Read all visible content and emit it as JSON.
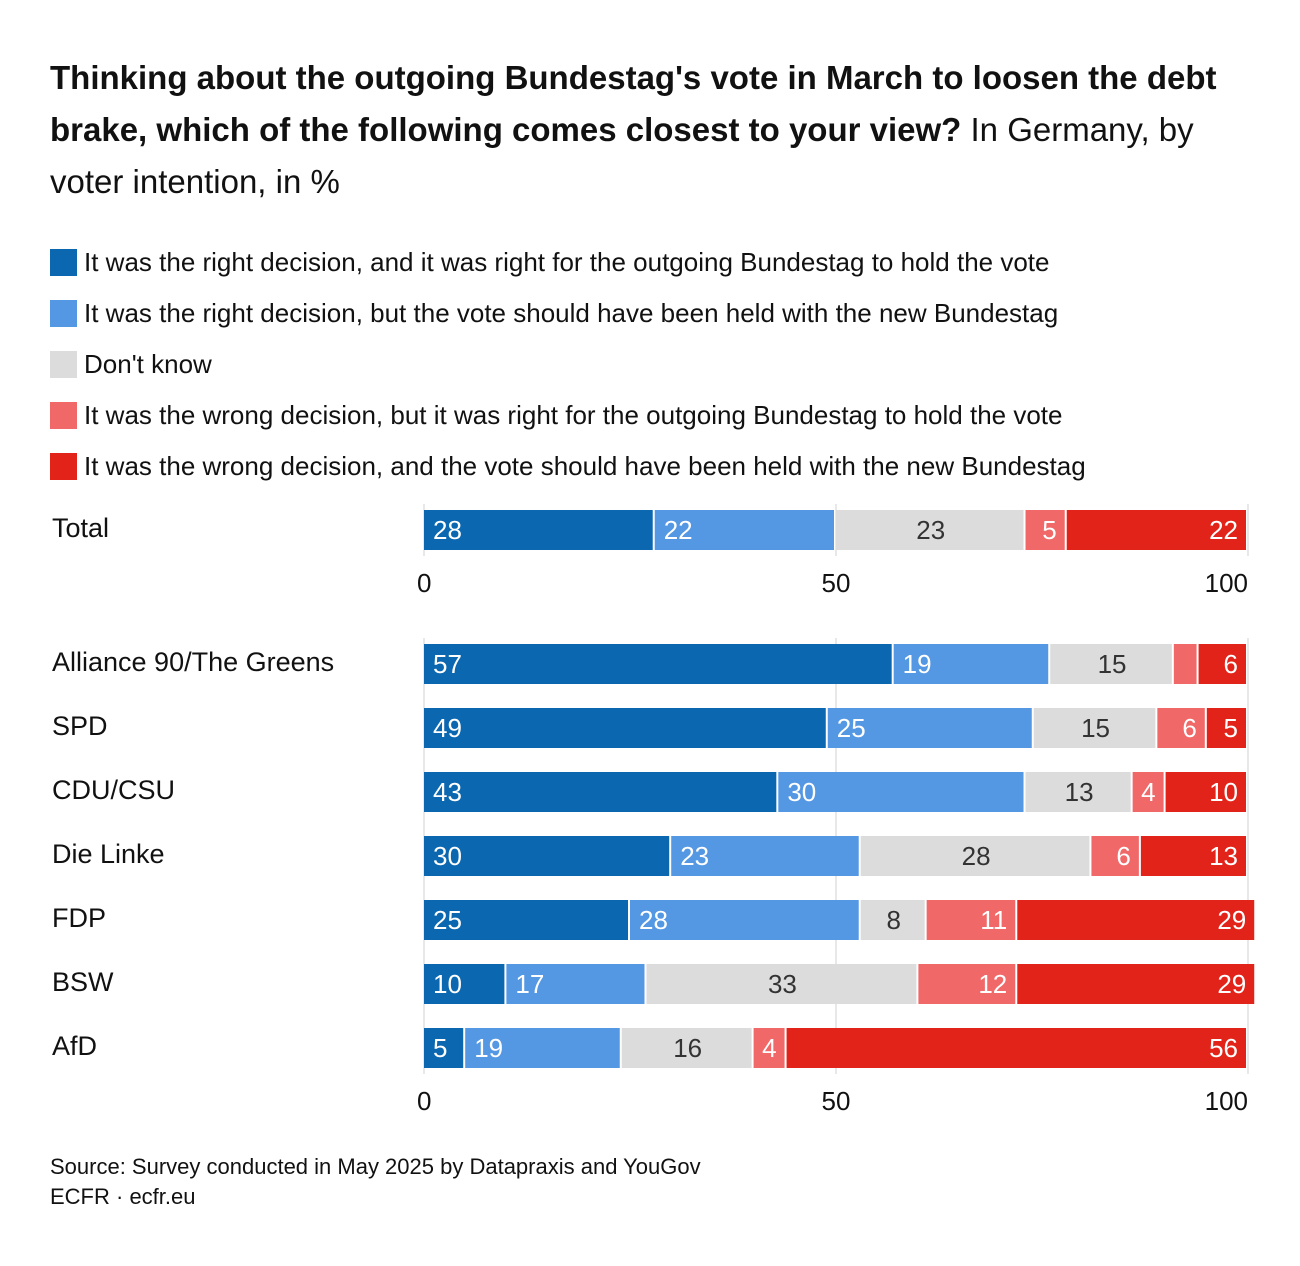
{
  "title": {
    "bold": "Thinking about the outgoing Bundestag's vote in March to loosen the debt brake, which of the following comes closest to your view?",
    "subtitle": "In Germany, by voter intention, in %"
  },
  "chart_data": {
    "type": "bar",
    "orientation": "horizontal",
    "stacked": true,
    "xlim": [
      0,
      100
    ],
    "xticks": [
      "0",
      "50",
      "100"
    ],
    "series": [
      {
        "name": "It was the right decision, and it was right for the outgoing Bundestag to hold the vote",
        "color": "#0a67b0"
      },
      {
        "name": "It was the right decision, but the vote should have been held with the new Bundestag",
        "color": "#5497e3"
      },
      {
        "name": "Don't know",
        "color": "#dcdcdc"
      },
      {
        "name": "It was the wrong decision, but it was right for the outgoing Bundestag to hold the vote",
        "color": "#f06868"
      },
      {
        "name": "It was the wrong decision, and the vote should have been held with the new Bundestag",
        "color": "#e2231a"
      }
    ],
    "panels": [
      {
        "categories": [
          "Total"
        ],
        "values": [
          [
            28,
            22,
            23,
            5,
            22
          ]
        ]
      },
      {
        "categories": [
          "Alliance 90/The Greens",
          "SPD",
          "CDU/CSU",
          "Die Linke",
          "FDP",
          "BSW",
          "AfD"
        ],
        "values": [
          [
            57,
            19,
            15,
            3,
            6
          ],
          [
            49,
            25,
            15,
            6,
            5
          ],
          [
            43,
            30,
            13,
            4,
            10
          ],
          [
            30,
            23,
            28,
            6,
            13
          ],
          [
            25,
            28,
            8,
            11,
            29
          ],
          [
            10,
            17,
            33,
            12,
            29
          ],
          [
            5,
            19,
            16,
            4,
            56
          ]
        ],
        "hidden_labels": [
          [
            3
          ]
        ]
      }
    ]
  },
  "footer": {
    "source": "Source: Survey conducted in May 2025 by Datapraxis and YouGov",
    "credit": "ECFR · ecfr.eu"
  }
}
